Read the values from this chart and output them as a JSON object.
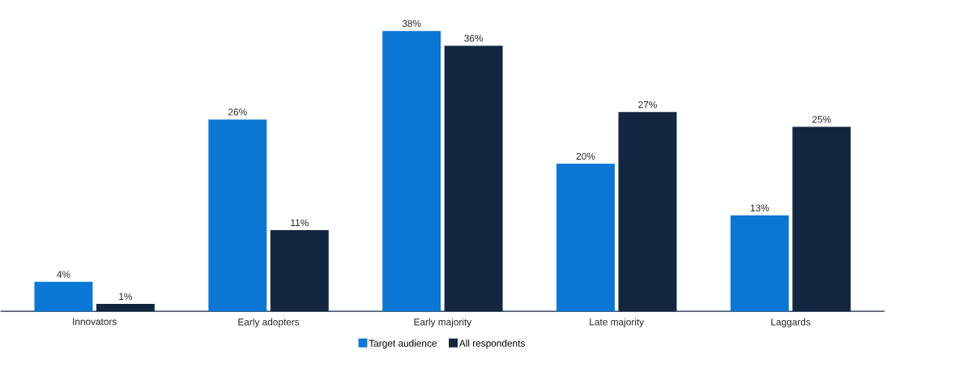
{
  "chart_data": {
    "type": "bar",
    "categories": [
      "Innovators",
      "Early adopters",
      "Early majority",
      "Late majority",
      "Laggards"
    ],
    "series": [
      {
        "name": "Target audience",
        "color": "#0a77d5",
        "values": [
          4,
          26,
          38,
          20,
          13
        ],
        "value_labels": [
          "4%",
          "26%",
          "38%",
          "20%",
          "13%"
        ]
      },
      {
        "name": "All respondents",
        "color": "#12263f",
        "values": [
          1,
          11,
          36,
          27,
          25
        ],
        "value_labels": [
          "1%",
          "11%",
          "36%",
          "27%",
          "25%"
        ]
      }
    ],
    "legend": "bottom"
  }
}
